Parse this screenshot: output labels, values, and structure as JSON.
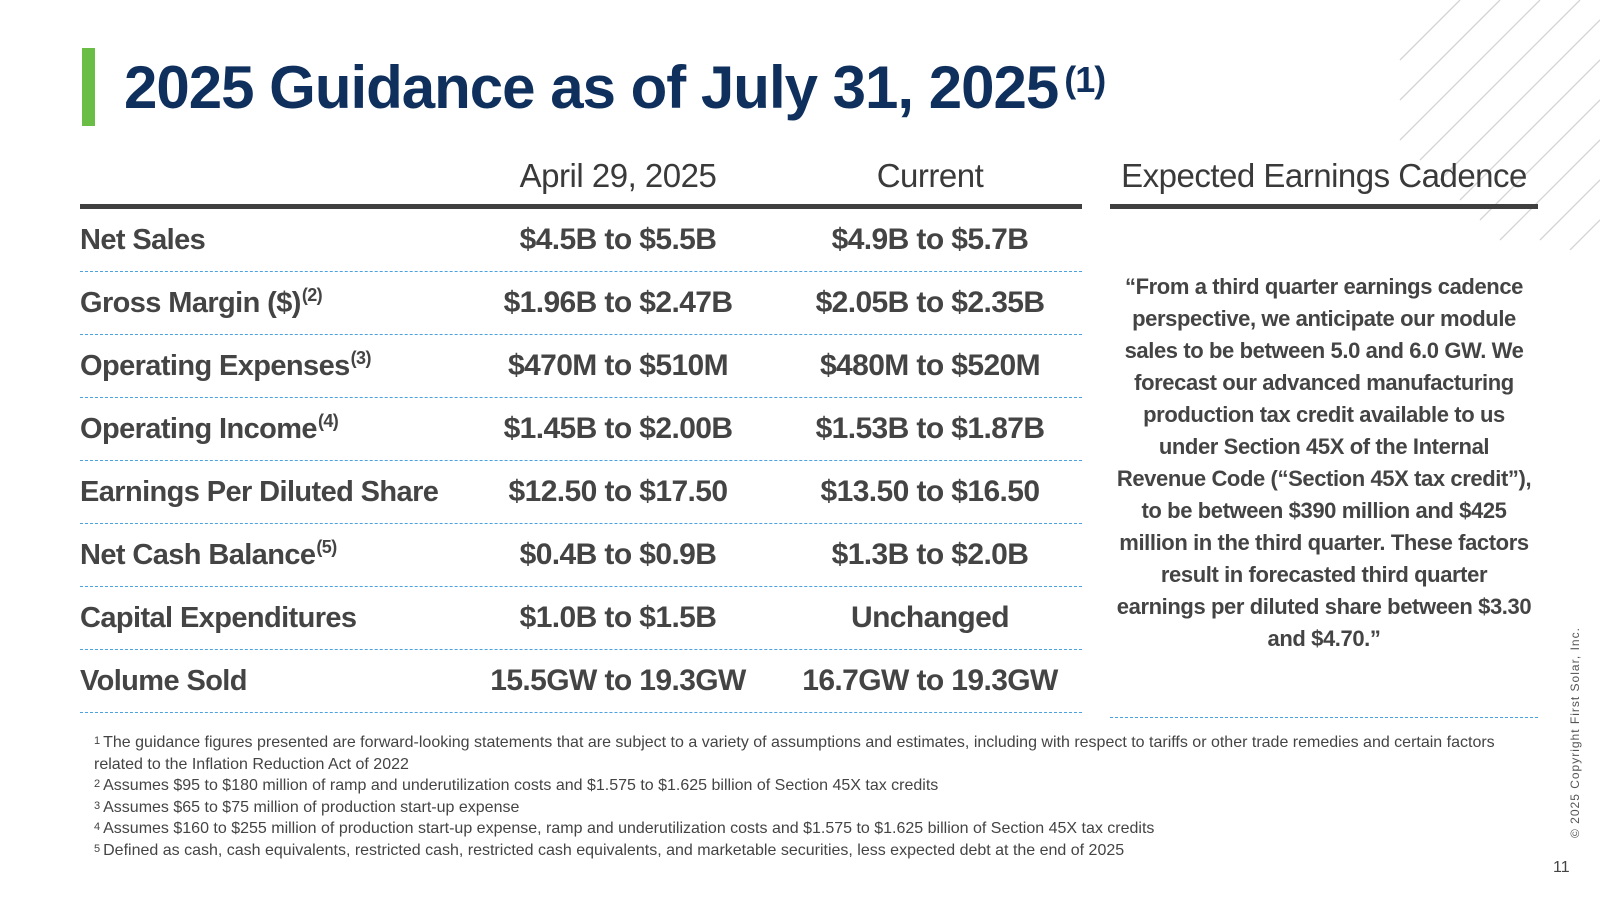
{
  "title": {
    "text": "2025 Guidance as of July 31, 2025",
    "footnote_marker": "(1)"
  },
  "table": {
    "headers": {
      "label": "",
      "april": "April 29, 2025",
      "current": "Current"
    },
    "rows": [
      {
        "label": "Net Sales",
        "note": "",
        "april": "$4.5B to $5.5B",
        "current": "$4.9B to $5.7B"
      },
      {
        "label": "Gross Margin ($)",
        "note": "(2)",
        "april": "$1.96B to $2.47B",
        "current": "$2.05B to $2.35B"
      },
      {
        "label": "Operating Expenses",
        "note": "(3)",
        "april": "$470M to $510M",
        "current": "$480M to $520M"
      },
      {
        "label": "Operating Income",
        "note": "(4)",
        "april": "$1.45B to $2.00B",
        "current": "$1.53B to $1.87B"
      },
      {
        "label": "Earnings Per Diluted Share",
        "note": "",
        "april": "$12.50 to $17.50",
        "current": "$13.50 to $16.50"
      },
      {
        "label": "Net Cash Balance",
        "note": "(5)",
        "april": "$0.4B to $0.9B",
        "current": "$1.3B to $2.0B"
      },
      {
        "label": "Capital Expenditures",
        "note": "",
        "april": "$1.0B to $1.5B",
        "current": "Unchanged"
      },
      {
        "label": "Volume Sold",
        "note": "",
        "april": "15.5GW to 19.3GW",
        "current": "16.7GW to 19.3GW"
      }
    ]
  },
  "cadence": {
    "heading": "Expected Earnings Cadence",
    "quote": "“From a third quarter earnings cadence perspective, we anticipate our module sales to be between 5.0 and 6.0 GW. We forecast our advanced manufacturing production tax credit available to us under Section 45X of the Internal Revenue Code (“Section 45X tax credit”), to be between $390 million and $425 million in the third quarter. These factors result in forecasted third quarter earnings per diluted share between $3.30 and $4.70.”"
  },
  "footnotes": [
    {
      "num": "1",
      "text": "The guidance figures presented are forward-looking statements that are subject to a variety of assumptions and estimates, including with respect to tariffs or other trade remedies and certain factors related to the Inflation Reduction Act of 2022"
    },
    {
      "num": "2",
      "text": "Assumes $95 to $180 million of ramp and underutilization costs and $1.575 to $1.625 billion of Section 45X tax credits"
    },
    {
      "num": "3",
      "text": "Assumes $65 to $75 million of production start-up expense"
    },
    {
      "num": "4",
      "text": "Assumes $160 to $255 million of production start-up expense, ramp and underutilization costs and $1.575 to $1.625 billion of Section 45X tax credits"
    },
    {
      "num": "5",
      "text": "Defined as cash, cash equivalents, restricted cash, restricted cash equivalents, and marketable securities, less expected debt at the end of 2025"
    }
  ],
  "copyright": "© 2025 Copyright First Solar, Inc.",
  "page_number": "11",
  "colors": {
    "title": "#0f2f5c",
    "accent": "#6abd45",
    "rule": "#3f3f3f",
    "dashed_divider": "#4aa3e0",
    "body_text": "#444444"
  }
}
